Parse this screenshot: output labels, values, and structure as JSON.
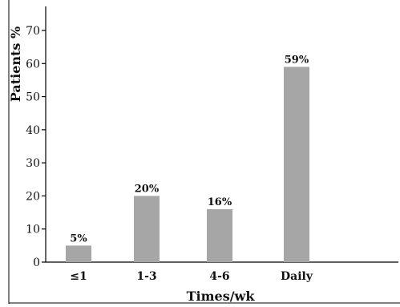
{
  "chart_data": {
    "type": "bar",
    "title": "",
    "xlabel": "Times/wk",
    "ylabel": "Patients %",
    "categories": [
      "≤1",
      "1-3",
      "4-6",
      "Daily"
    ],
    "values": [
      5,
      20,
      16,
      59
    ],
    "data_labels": [
      "5%",
      "20%",
      "16%",
      "59%"
    ],
    "ylim": [
      0,
      75
    ],
    "yticks": [
      0,
      10,
      20,
      30,
      40,
      50,
      60,
      70
    ],
    "grid": false,
    "bar_color": "#a6a6a6"
  }
}
